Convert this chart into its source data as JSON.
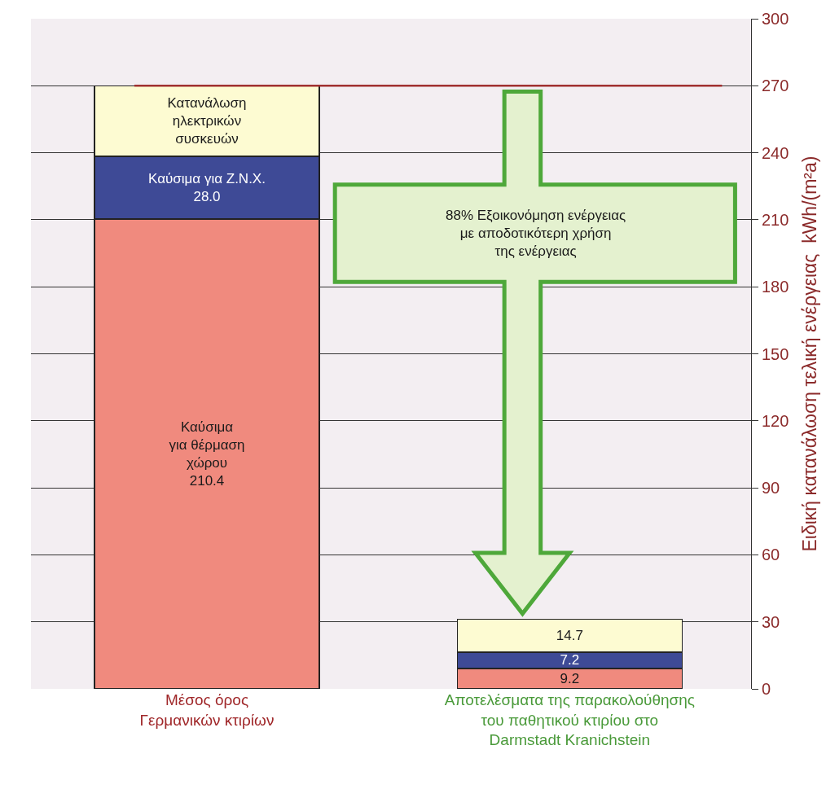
{
  "chart_data": {
    "type": "bar",
    "stacked": true,
    "ylabel": "Ειδική κατανάλωση τελική ενέργειας  kWh/(m²a)",
    "categories": [
      "Μέσος όρος\nΓερμανικών κτιρίων",
      "Αποτελέσματα της παρακολούθησης\nτου παθητικού κτιρίου στο\nDarmstadt Kranichstein"
    ],
    "series": [
      {
        "color": "#f08a7e",
        "values": [
          210.4,
          9.2
        ],
        "value_labels": [
          "Καύσιμα\nγια θέρμαση\nχώρου\n210.4",
          "9.2"
        ]
      },
      {
        "color": "#3e4a96",
        "values": [
          28.0,
          7.2
        ],
        "value_labels": [
          "Καύσιμα για Ζ.Ν.Χ.\n28.0",
          "7.2"
        ]
      },
      {
        "color": "#fdfbd2",
        "values": [
          31.6,
          14.7
        ],
        "value_labels": [
          "Κατανάλωση\nηλεκτρικών\nσυσκευών",
          "14.7"
        ]
      }
    ],
    "ylim": [
      0,
      300
    ],
    "yticks": [
      0,
      30,
      60,
      90,
      120,
      150,
      180,
      210,
      240,
      270,
      300
    ],
    "grid": "y",
    "ref_lines": [
      {
        "axis": "y",
        "value": 270,
        "color": "#a03030"
      }
    ],
    "annotations": [
      "88% Εξοικονόμηση ενέργειας\nμε αποδοτικότερη χρήση\nτης ενέργειας"
    ]
  }
}
